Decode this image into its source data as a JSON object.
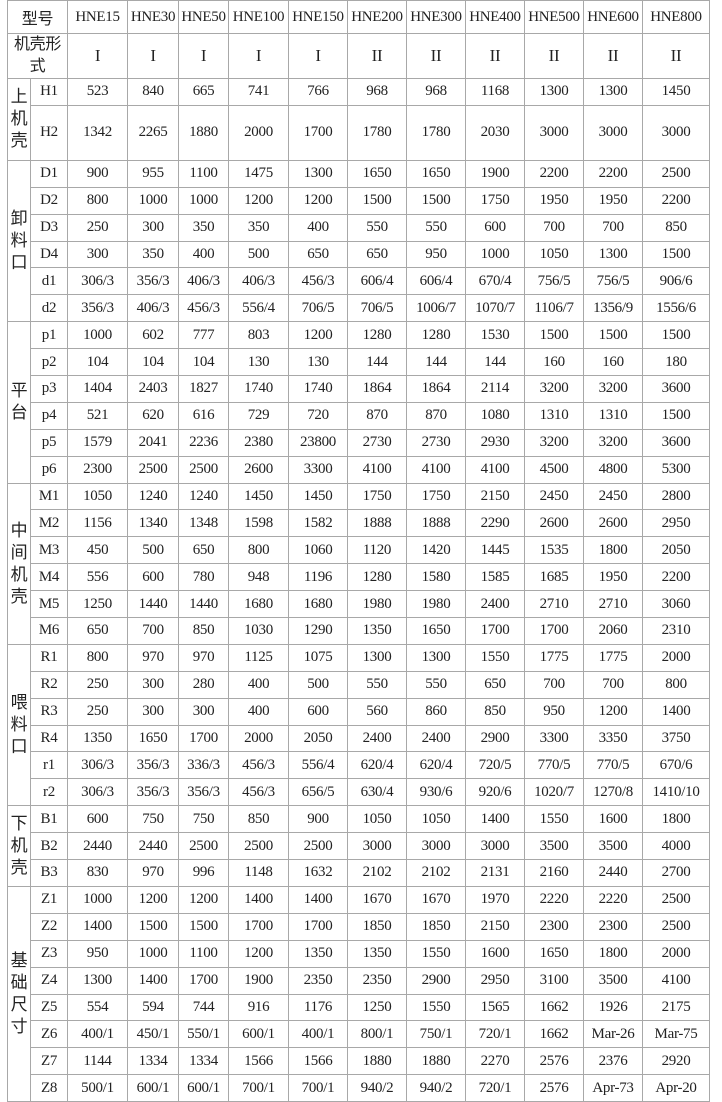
{
  "header": {
    "corner_label": "型号",
    "models": [
      "HNE15",
      "HNE30",
      "HNE50",
      "HNE100",
      "HNE150",
      "HNE200",
      "HNE300",
      "HNE400",
      "HNE500",
      "HNE600",
      "HNE800"
    ]
  },
  "shell_type": {
    "label": "机壳形式",
    "values": [
      "I",
      "I",
      "I",
      "I",
      "I",
      "II",
      "II",
      "II",
      "II",
      "II",
      "II"
    ]
  },
  "groups": [
    {
      "label": "上机壳",
      "rows": [
        {
          "code": "H1",
          "values": [
            "523",
            "840",
            "665",
            "741",
            "766",
            "968",
            "968",
            "1168",
            "1300",
            "1300",
            "1450"
          ]
        },
        {
          "code": "H2",
          "values": [
            "1342",
            "2265",
            "1880",
            "2000",
            "1700",
            "1780",
            "1780",
            "2030",
            "3000",
            "3000",
            "3000"
          ]
        }
      ]
    },
    {
      "label": "卸料口",
      "rows": [
        {
          "code": "D1",
          "values": [
            "900",
            "955",
            "1100",
            "1475",
            "1300",
            "1650",
            "1650",
            "1900",
            "2200",
            "2200",
            "2500"
          ]
        },
        {
          "code": "D2",
          "values": [
            "800",
            "1000",
            "1000",
            "1200",
            "1200",
            "1500",
            "1500",
            "1750",
            "1950",
            "1950",
            "2200"
          ]
        },
        {
          "code": "D3",
          "values": [
            "250",
            "300",
            "350",
            "350",
            "400",
            "550",
            "550",
            "600",
            "700",
            "700",
            "850"
          ]
        },
        {
          "code": "D4",
          "values": [
            "300",
            "350",
            "400",
            "500",
            "650",
            "650",
            "950",
            "1000",
            "1050",
            "1300",
            "1500"
          ]
        },
        {
          "code": "d1",
          "values": [
            "306/3",
            "356/3",
            "406/3",
            "406/3",
            "456/3",
            "606/4",
            "606/4",
            "670/4",
            "756/5",
            "756/5",
            "906/6"
          ]
        },
        {
          "code": "d2",
          "values": [
            "356/3",
            "406/3",
            "456/3",
            "556/4",
            "706/5",
            "706/5",
            "1006/7",
            "1070/7",
            "1106/7",
            "1356/9",
            "1556/6"
          ]
        }
      ]
    },
    {
      "label": "平台",
      "rows": [
        {
          "code": "p1",
          "values": [
            "1000",
            "602",
            "777",
            "803",
            "1200",
            "1280",
            "1280",
            "1530",
            "1500",
            "1500",
            "1500"
          ]
        },
        {
          "code": "p2",
          "values": [
            "104",
            "104",
            "104",
            "130",
            "130",
            "144",
            "144",
            "144",
            "160",
            "160",
            "180"
          ]
        },
        {
          "code": "p3",
          "values": [
            "1404",
            "2403",
            "1827",
            "1740",
            "1740",
            "1864",
            "1864",
            "2114",
            "3200",
            "3200",
            "3600"
          ]
        },
        {
          "code": "p4",
          "values": [
            "521",
            "620",
            "616",
            "729",
            "720",
            "870",
            "870",
            "1080",
            "1310",
            "1310",
            "1500"
          ]
        },
        {
          "code": "p5",
          "values": [
            "1579",
            "2041",
            "2236",
            "2380",
            "23800",
            "2730",
            "2730",
            "2930",
            "3200",
            "3200",
            "3600"
          ]
        },
        {
          "code": "p6",
          "values": [
            "2300",
            "2500",
            "2500",
            "2600",
            "3300",
            "4100",
            "4100",
            "4100",
            "4500",
            "4800",
            "5300"
          ]
        }
      ]
    },
    {
      "label": "中间机壳",
      "rows": [
        {
          "code": "M1",
          "values": [
            "1050",
            "1240",
            "1240",
            "1450",
            "1450",
            "1750",
            "1750",
            "2150",
            "2450",
            "2450",
            "2800"
          ]
        },
        {
          "code": "M2",
          "values": [
            "1156",
            "1340",
            "1348",
            "1598",
            "1582",
            "1888",
            "1888",
            "2290",
            "2600",
            "2600",
            "2950"
          ]
        },
        {
          "code": "M3",
          "values": [
            "450",
            "500",
            "650",
            "800",
            "1060",
            "1120",
            "1420",
            "1445",
            "1535",
            "1800",
            "2050"
          ]
        },
        {
          "code": "M4",
          "values": [
            "556",
            "600",
            "780",
            "948",
            "1196",
            "1280",
            "1580",
            "1585",
            "1685",
            "1950",
            "2200"
          ]
        },
        {
          "code": "M5",
          "values": [
            "1250",
            "1440",
            "1440",
            "1680",
            "1680",
            "1980",
            "1980",
            "2400",
            "2710",
            "2710",
            "3060"
          ]
        },
        {
          "code": "M6",
          "values": [
            "650",
            "700",
            "850",
            "1030",
            "1290",
            "1350",
            "1650",
            "1700",
            "1700",
            "2060",
            "2310"
          ]
        }
      ]
    },
    {
      "label": "喂料口",
      "rows": [
        {
          "code": "R1",
          "values": [
            "800",
            "970",
            "970",
            "1125",
            "1075",
            "1300",
            "1300",
            "1550",
            "1775",
            "1775",
            "2000"
          ]
        },
        {
          "code": "R2",
          "values": [
            "250",
            "300",
            "280",
            "400",
            "500",
            "550",
            "550",
            "650",
            "700",
            "700",
            "800"
          ]
        },
        {
          "code": "R3",
          "values": [
            "250",
            "300",
            "300",
            "400",
            "600",
            "560",
            "860",
            "850",
            "950",
            "1200",
            "1400"
          ]
        },
        {
          "code": "R4",
          "values": [
            "1350",
            "1650",
            "1700",
            "2000",
            "2050",
            "2400",
            "2400",
            "2900",
            "3300",
            "3350",
            "3750"
          ]
        },
        {
          "code": "r1",
          "values": [
            "306/3",
            "356/3",
            "336/3",
            "456/3",
            "556/4",
            "620/4",
            "620/4",
            "720/5",
            "770/5",
            "770/5",
            "670/6"
          ]
        },
        {
          "code": "r2",
          "values": [
            "306/3",
            "356/3",
            "356/3",
            "456/3",
            "656/5",
            "630/4",
            "930/6",
            "920/6",
            "1020/7",
            "1270/8",
            "1410/10"
          ]
        }
      ]
    },
    {
      "label": "下机壳",
      "rows": [
        {
          "code": "B1",
          "values": [
            "600",
            "750",
            "750",
            "850",
            "900",
            "1050",
            "1050",
            "1400",
            "1550",
            "1600",
            "1800"
          ]
        },
        {
          "code": "B2",
          "values": [
            "2440",
            "2440",
            "2500",
            "2500",
            "2500",
            "3000",
            "3000",
            "3000",
            "3500",
            "3500",
            "4000"
          ]
        },
        {
          "code": "B3",
          "values": [
            "830",
            "970",
            "996",
            "1148",
            "1632",
            "2102",
            "2102",
            "2131",
            "2160",
            "2440",
            "2700"
          ]
        }
      ]
    },
    {
      "label": "基础尺寸",
      "rows": [
        {
          "code": "Z1",
          "values": [
            "1000",
            "1200",
            "1200",
            "1400",
            "1400",
            "1670",
            "1670",
            "1970",
            "2220",
            "2220",
            "2500"
          ]
        },
        {
          "code": "Z2",
          "values": [
            "1400",
            "1500",
            "1500",
            "1700",
            "1700",
            "1850",
            "1850",
            "2150",
            "2300",
            "2300",
            "2500"
          ]
        },
        {
          "code": "Z3",
          "values": [
            "950",
            "1000",
            "1100",
            "1200",
            "1350",
            "1350",
            "1550",
            "1600",
            "1650",
            "1800",
            "2000"
          ]
        },
        {
          "code": "Z4",
          "values": [
            "1300",
            "1400",
            "1700",
            "1900",
            "2350",
            "2350",
            "2900",
            "2950",
            "3100",
            "3500",
            "4100"
          ]
        },
        {
          "code": "Z5",
          "values": [
            "554",
            "594",
            "744",
            "916",
            "1176",
            "1250",
            "1550",
            "1565",
            "1662",
            "1926",
            "2175"
          ]
        },
        {
          "code": "Z6",
          "values": [
            "400/1",
            "450/1",
            "550/1",
            "600/1",
            "400/1",
            "800/1",
            "750/1",
            "720/1",
            "1662",
            "Mar-26",
            "Mar-75"
          ]
        },
        {
          "code": "Z7",
          "values": [
            "1144",
            "1334",
            "1334",
            "1566",
            "1566",
            "1880",
            "1880",
            "2270",
            "2576",
            "2376",
            "2920"
          ]
        },
        {
          "code": "Z8",
          "values": [
            "500/1",
            "600/1",
            "600/1",
            "700/1",
            "700/1",
            "940/2",
            "940/2",
            "720/1",
            "2576",
            "Apr-73",
            "Apr-20"
          ]
        }
      ]
    }
  ]
}
